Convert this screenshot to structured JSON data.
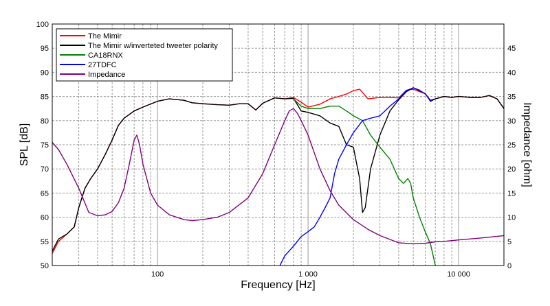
{
  "chart_data": {
    "type": "line",
    "xlabel": "Frequency [Hz]",
    "ylabel": "SPL [dB]",
    "y2label": "Impedance [ohm]",
    "xscale": "log",
    "xlim": [
      20,
      20000
    ],
    "ylim": [
      50,
      100
    ],
    "y2lim": [
      0,
      50
    ],
    "grid": true,
    "legend_position": "top-left",
    "x_tick_labels": [
      {
        "value": 100,
        "label": "100"
      },
      {
        "value": 1000,
        "label": "1 000"
      },
      {
        "value": 10000,
        "label": "10 000"
      }
    ],
    "y_tick_labels": [
      "50",
      "55",
      "60",
      "65",
      "70",
      "75",
      "80",
      "85",
      "90",
      "95",
      "100"
    ],
    "y2_tick_labels": [
      "0",
      "5",
      "10",
      "15",
      "20",
      "25",
      "30",
      "35",
      "40",
      "45"
    ],
    "series": [
      {
        "name": "The Mimir",
        "color": "#ff0000",
        "axis": "left",
        "points": [
          [
            20,
            52.5
          ],
          [
            22,
            55
          ],
          [
            25,
            56.5
          ],
          [
            28,
            58
          ],
          [
            30,
            62
          ],
          [
            33,
            66
          ],
          [
            36,
            68
          ],
          [
            40,
            70
          ],
          [
            45,
            73
          ],
          [
            50,
            76
          ],
          [
            55,
            79
          ],
          [
            60,
            80.5
          ],
          [
            70,
            82
          ],
          [
            80,
            82.8
          ],
          [
            100,
            84
          ],
          [
            120,
            84.5
          ],
          [
            150,
            84.2
          ],
          [
            170,
            83.7
          ],
          [
            200,
            83.5
          ],
          [
            250,
            83.3
          ],
          [
            300,
            83.2
          ],
          [
            350,
            83.5
          ],
          [
            400,
            83.5
          ],
          [
            450,
            82.2
          ],
          [
            500,
            83.6
          ],
          [
            600,
            84.7
          ],
          [
            700,
            84.5
          ],
          [
            800,
            84.8
          ],
          [
            900,
            83.8
          ],
          [
            1000,
            82.8
          ],
          [
            1200,
            83.4
          ],
          [
            1400,
            84.5
          ],
          [
            1600,
            85
          ],
          [
            1800,
            85.5
          ],
          [
            2000,
            86.2
          ],
          [
            2200,
            86.5
          ],
          [
            2500,
            84.5
          ],
          [
            3000,
            84.8
          ],
          [
            3500,
            84.8
          ],
          [
            4000,
            84.7
          ],
          [
            4500,
            86.3
          ],
          [
            5000,
            86.5
          ],
          [
            5500,
            86
          ],
          [
            6000,
            85.6
          ],
          [
            6500,
            84.2
          ],
          [
            7000,
            84.5
          ],
          [
            8000,
            85
          ],
          [
            9000,
            84.8
          ],
          [
            10000,
            85
          ],
          [
            12000,
            84.8
          ],
          [
            14000,
            84.8
          ],
          [
            16000,
            85.2
          ],
          [
            18000,
            84.5
          ],
          [
            20000,
            82.5
          ]
        ]
      },
      {
        "name": "The Mimir w/inverteted tweeter polarity",
        "color": "#000000",
        "axis": "left",
        "points": [
          [
            20,
            53
          ],
          [
            22,
            55.5
          ],
          [
            25,
            56.5
          ],
          [
            28,
            58
          ],
          [
            30,
            62
          ],
          [
            33,
            66
          ],
          [
            36,
            68
          ],
          [
            40,
            70
          ],
          [
            45,
            73
          ],
          [
            50,
            76
          ],
          [
            55,
            79
          ],
          [
            60,
            80.5
          ],
          [
            70,
            82
          ],
          [
            80,
            82.8
          ],
          [
            100,
            84
          ],
          [
            120,
            84.5
          ],
          [
            150,
            84.2
          ],
          [
            170,
            83.7
          ],
          [
            200,
            83.5
          ],
          [
            250,
            83.3
          ],
          [
            300,
            83.2
          ],
          [
            350,
            83.5
          ],
          [
            400,
            83.5
          ],
          [
            450,
            82.2
          ],
          [
            500,
            83.6
          ],
          [
            600,
            84.7
          ],
          [
            700,
            84.5
          ],
          [
            800,
            84.6
          ],
          [
            900,
            82
          ],
          [
            1000,
            81.7
          ],
          [
            1200,
            81
          ],
          [
            1400,
            79.5
          ],
          [
            1600,
            78.8
          ],
          [
            1800,
            75
          ],
          [
            2000,
            74.5
          ],
          [
            2200,
            68
          ],
          [
            2300,
            61
          ],
          [
            2400,
            62
          ],
          [
            2600,
            70
          ],
          [
            3000,
            77
          ],
          [
            3500,
            82
          ],
          [
            4000,
            84.3
          ],
          [
            4500,
            86
          ],
          [
            5000,
            86.8
          ],
          [
            5500,
            86.2
          ],
          [
            6000,
            85.6
          ],
          [
            6500,
            84
          ],
          [
            7000,
            84.5
          ],
          [
            8000,
            85
          ],
          [
            9000,
            84.8
          ],
          [
            10000,
            85
          ],
          [
            12000,
            84.8
          ],
          [
            14000,
            84.8
          ],
          [
            16000,
            85.2
          ],
          [
            18000,
            84.5
          ],
          [
            20000,
            82.5
          ]
        ]
      },
      {
        "name": "CA18RNX",
        "color": "#008000",
        "axis": "left",
        "points": [
          [
            800,
            84.5
          ],
          [
            900,
            83
          ],
          [
            1000,
            82.5
          ],
          [
            1200,
            82.5
          ],
          [
            1400,
            83
          ],
          [
            1600,
            83
          ],
          [
            1800,
            82
          ],
          [
            2000,
            81
          ],
          [
            2300,
            80
          ],
          [
            2600,
            77
          ],
          [
            3000,
            74.5
          ],
          [
            3500,
            72
          ],
          [
            4000,
            68
          ],
          [
            4300,
            67
          ],
          [
            4600,
            68
          ],
          [
            4800,
            67
          ],
          [
            5000,
            64
          ],
          [
            5500,
            60
          ],
          [
            6000,
            57
          ],
          [
            6500,
            54.5
          ],
          [
            7000,
            50
          ]
        ]
      },
      {
        "name": "27TDFC",
        "color": "#0000ff",
        "axis": "left",
        "points": [
          [
            650,
            50
          ],
          [
            700,
            52
          ],
          [
            800,
            54
          ],
          [
            900,
            56
          ],
          [
            1000,
            57
          ],
          [
            1100,
            58
          ],
          [
            1200,
            60
          ],
          [
            1300,
            62
          ],
          [
            1400,
            64
          ],
          [
            1500,
            69
          ],
          [
            1600,
            72
          ],
          [
            1800,
            75
          ],
          [
            2000,
            77.5
          ],
          [
            2300,
            80
          ],
          [
            2600,
            80.5
          ],
          [
            3000,
            81
          ],
          [
            3500,
            83
          ],
          [
            4000,
            84.5
          ],
          [
            4500,
            86.2
          ],
          [
            5000,
            86.8
          ],
          [
            5500,
            86.3
          ],
          [
            6000,
            85.5
          ],
          [
            6500,
            84.2
          ],
          [
            7000,
            84.5
          ]
        ]
      },
      {
        "name": "Impedance",
        "color": "#800080",
        "axis": "right",
        "points": [
          [
            20,
            25.5
          ],
          [
            22,
            24
          ],
          [
            25,
            21
          ],
          [
            30,
            16
          ],
          [
            35,
            11
          ],
          [
            40,
            10.3
          ],
          [
            45,
            10.5
          ],
          [
            50,
            11.2
          ],
          [
            55,
            13
          ],
          [
            60,
            16
          ],
          [
            65,
            21
          ],
          [
            70,
            26
          ],
          [
            73,
            27
          ],
          [
            76,
            25
          ],
          [
            80,
            21
          ],
          [
            90,
            15
          ],
          [
            100,
            12.5
          ],
          [
            120,
            10.5
          ],
          [
            150,
            9.5
          ],
          [
            170,
            9.3
          ],
          [
            200,
            9.5
          ],
          [
            250,
            10
          ],
          [
            300,
            11
          ],
          [
            400,
            14
          ],
          [
            500,
            19
          ],
          [
            600,
            25
          ],
          [
            700,
            30
          ],
          [
            750,
            32
          ],
          [
            800,
            32.5
          ],
          [
            850,
            31.5
          ],
          [
            900,
            30
          ],
          [
            1000,
            27
          ],
          [
            1200,
            20
          ],
          [
            1400,
            15.5
          ],
          [
            1600,
            12.5
          ],
          [
            2000,
            9.5
          ],
          [
            2500,
            7.5
          ],
          [
            3000,
            6.2
          ],
          [
            4000,
            4.7
          ],
          [
            5000,
            4.5
          ],
          [
            6000,
            4.6
          ],
          [
            7000,
            4.9
          ],
          [
            8000,
            5
          ],
          [
            10000,
            5.3
          ],
          [
            14000,
            5.7
          ],
          [
            20000,
            6.2
          ]
        ]
      }
    ]
  }
}
